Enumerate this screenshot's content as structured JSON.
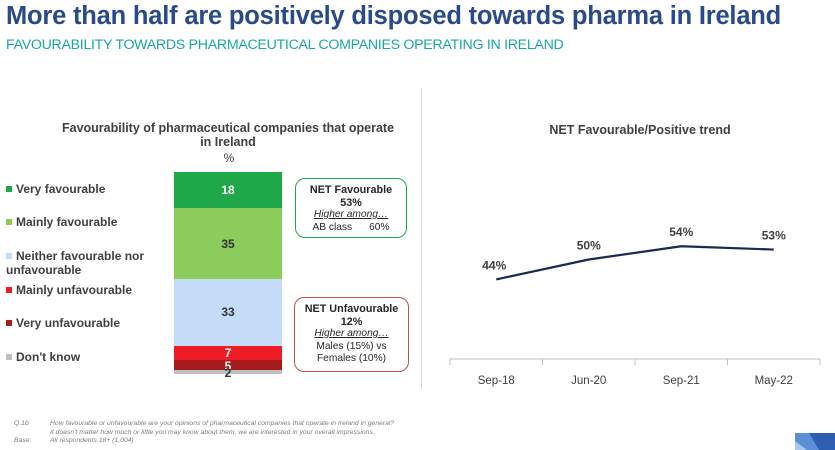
{
  "header": {
    "title": "More than half are positively disposed towards pharma in Ireland",
    "subtitle": "FAVOURABILITY TOWARDS  PHARMACEUTICAL COMPANIES OPERATING IN IRELAND"
  },
  "bar_chart": {
    "title": "Favourability of pharmaceutical companies that operate in Ireland",
    "unit_label": "%"
  },
  "net_favourable": {
    "title": "NET Favourable",
    "value": "53%",
    "higher_among": "Higher among…",
    "detail": "AB class",
    "detail_value": "60%"
  },
  "net_unfavourable": {
    "title": "NET Unfavourable",
    "value": "12%",
    "higher_among": "Higher among…",
    "detail_line1": "Males (15%) vs",
    "detail_line2": "Females (10%)"
  },
  "line_chart": {
    "title": "NET Favourable/Positive trend"
  },
  "chart_data": [
    {
      "type": "bar",
      "stacked": true,
      "title": "Favourability of pharmaceutical companies that operate in Ireland",
      "ylabel": "%",
      "categories": [
        "Very favourable",
        "Mainly favourable",
        "Neither favourable nor unfavourable",
        "Mainly unfavourable",
        "Very unfavourable",
        "Don't know"
      ],
      "values": [
        18,
        35,
        33,
        7,
        5,
        2
      ],
      "value_labels": [
        "18",
        "35",
        "33",
        "7",
        "5",
        "2"
      ],
      "colors": [
        "#1fa84a",
        "#8ccc5c",
        "#c4dcf8",
        "#ee1c25",
        "#a61c1c",
        "#bfbfbf"
      ],
      "label_colors": [
        "#ffffff",
        "#333333",
        "#333333",
        "#ffffff",
        "#ffffff",
        "#333333"
      ]
    },
    {
      "type": "line",
      "title": "NET Favourable/Positive trend",
      "x": [
        "Sep-18",
        "Jun-20",
        "Sep-21",
        "May-22"
      ],
      "values": [
        44,
        50,
        54,
        53
      ],
      "value_labels": [
        "44%",
        "50%",
        "54%",
        "53%"
      ],
      "ylim": [
        20,
        80
      ],
      "line_color": "#1c2a52"
    }
  ],
  "footnote": {
    "q_label": "Q.1b",
    "q_line1": "How favourable or unfavourable are your opinions of pharmaceutical companies that operate in Ireland in general?",
    "q_line2": "It doesn't matter how much or little you may know about them, we are interested in your overall impressions.",
    "base_label": "Base:",
    "base_text": "All respondents 18+ (1,004)"
  }
}
